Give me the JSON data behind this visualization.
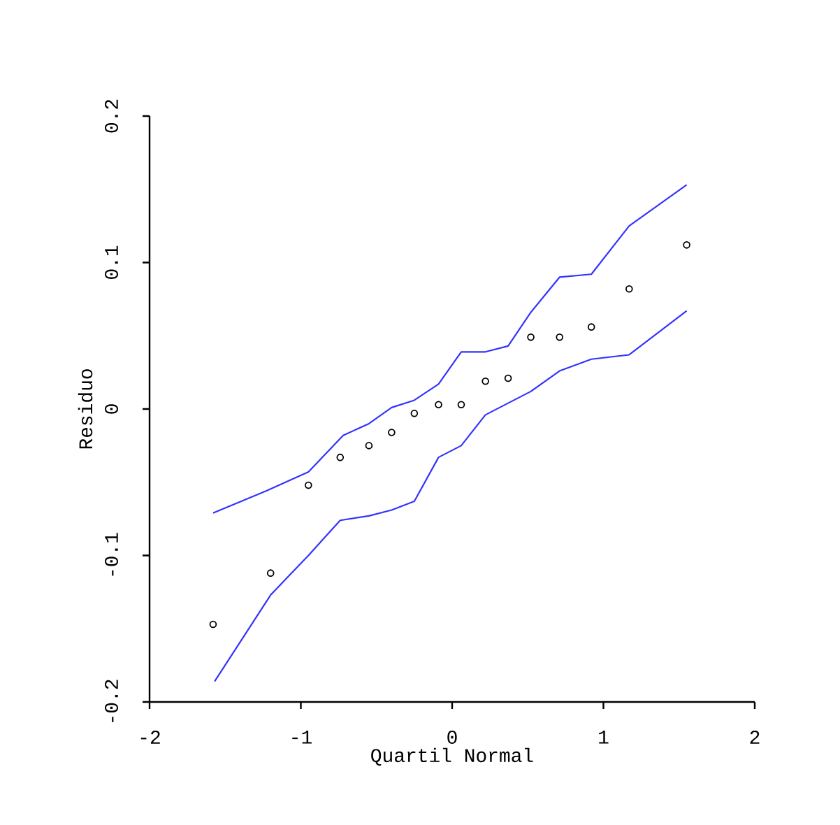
{
  "chart_data": {
    "type": "scatter",
    "xlabel": "Quartil Normal",
    "ylabel": "Residuo",
    "xlim": [
      -2,
      2
    ],
    "ylim": [
      -0.2,
      0.2
    ],
    "xticks": [
      -2,
      -1,
      0,
      1,
      2
    ],
    "yticks": [
      -0.2,
      -0.1,
      0,
      0.1,
      0.2
    ],
    "grid": false,
    "series": [
      {
        "color": "#000000",
        "marker": "circle",
        "x": [
          -1.58,
          -1.2,
          -0.95,
          -0.74,
          -0.55,
          -0.4,
          -0.25,
          -0.09,
          0.06,
          0.22,
          0.37,
          0.52,
          0.71,
          0.92,
          1.17,
          1.55
        ],
        "values": [
          -0.147,
          -0.112,
          -0.052,
          -0.033,
          -0.025,
          -0.016,
          -0.003,
          0.003,
          0.003,
          0.019,
          0.021,
          0.049,
          0.049,
          0.056,
          0.082,
          0.112
        ]
      },
      {
        "type": "line",
        "color": "#3333ff",
        "marker": "none",
        "line_style": "solid",
        "x": [
          -1.58,
          -1.23,
          -0.95,
          -0.72,
          -0.55,
          -0.4,
          -0.25,
          -0.09,
          0.06,
          0.22,
          0.37,
          0.52,
          0.71,
          0.92,
          1.17,
          1.55
        ],
        "values": [
          -0.071,
          -0.056,
          -0.043,
          -0.018,
          -0.01,
          0.001,
          0.006,
          0.017,
          0.039,
          0.039,
          0.043,
          0.066,
          0.09,
          0.092,
          0.125,
          0.153
        ]
      },
      {
        "type": "line",
        "color": "#3333ff",
        "marker": "none",
        "line_style": "solid",
        "x": [
          -1.57,
          -1.2,
          -0.95,
          -0.74,
          -0.55,
          -0.4,
          -0.25,
          -0.09,
          0.06,
          0.22,
          0.37,
          0.52,
          0.71,
          0.92,
          1.17,
          1.55
        ],
        "values": [
          -0.186,
          -0.127,
          -0.1,
          -0.076,
          -0.073,
          -0.069,
          -0.063,
          -0.033,
          -0.025,
          -0.004,
          0.004,
          0.012,
          0.026,
          0.034,
          0.037,
          0.067
        ]
      }
    ]
  }
}
